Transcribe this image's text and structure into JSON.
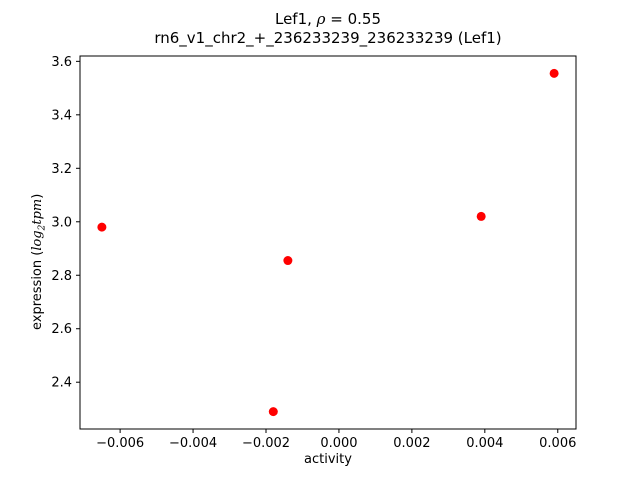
{
  "chart_data": {
    "type": "scatter",
    "title": "Lef1, ρ = 0.55",
    "subtitle": "rn6_v1_chr2_+_236233239_236233239 (Lef1)",
    "xlabel": "activity",
    "ylabel": "expression (log2tpm)",
    "marker": "o",
    "marker_color": "#ff0000",
    "grid": false,
    "legend": null,
    "xlim": [
      -0.0071,
      0.0065
    ],
    "ylim": [
      2.225,
      3.62
    ],
    "x_ticks": [
      -0.006,
      -0.004,
      -0.002,
      0.0,
      0.002,
      0.004,
      0.006
    ],
    "x_tick_labels": [
      "−0.006",
      "−0.004",
      "−0.002",
      "0.000",
      "0.002",
      "0.004",
      "0.006"
    ],
    "y_ticks": [
      2.4,
      2.6,
      2.8,
      3.0,
      3.2,
      3.4,
      3.6
    ],
    "y_tick_labels": [
      "2.4",
      "2.6",
      "2.8",
      "3.0",
      "3.2",
      "3.4",
      "3.6"
    ],
    "points": [
      {
        "x": -0.0065,
        "y": 2.98
      },
      {
        "x": -0.0018,
        "y": 2.29
      },
      {
        "x": -0.0014,
        "y": 2.855
      },
      {
        "x": 0.0039,
        "y": 3.02
      },
      {
        "x": 0.0059,
        "y": 3.555
      }
    ]
  },
  "labels": {
    "title_prefix": "Lef1, ",
    "title_rho": "ρ",
    "title_rest": " = 0.55",
    "subtitle": "rn6_v1_chr2_+_236233239_236233239 (Lef1)",
    "xlabel": "activity",
    "ylabel_prefix": "expression (",
    "ylabel_log": "log",
    "ylabel_sub": "2",
    "ylabel_tpm": "tpm",
    "ylabel_suffix": ")"
  }
}
